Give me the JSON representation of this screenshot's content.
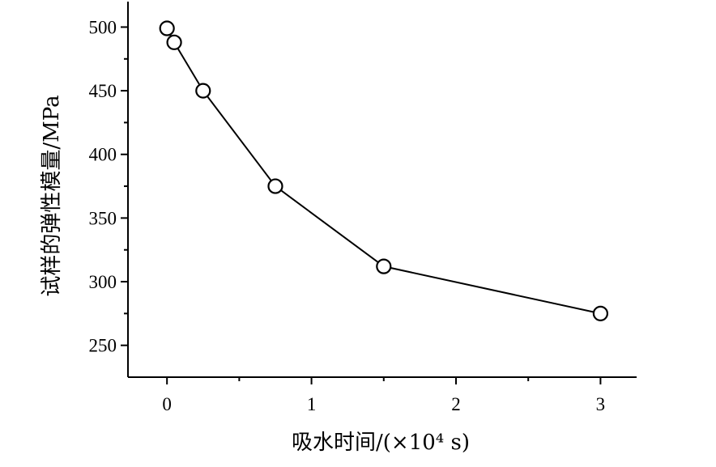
{
  "chart_data": {
    "type": "line",
    "title": "",
    "xlabel": "吸水时间/(×10⁴ s)",
    "ylabel": "试样的弹性模量/MPa",
    "xlim": [
      -0.27,
      3.25
    ],
    "ylim": [
      225,
      520
    ],
    "x_ticks": [
      0,
      1,
      2,
      3
    ],
    "x_tick_labels": [
      "0",
      "1",
      "2",
      "3"
    ],
    "x_minor_ticks": [
      0.5,
      1.5,
      2.5
    ],
    "y_ticks": [
      250,
      300,
      350,
      400,
      450,
      500
    ],
    "y_tick_labels": [
      "250",
      "300",
      "350",
      "400",
      "450",
      "500"
    ],
    "y_minor_ticks": [
      275,
      325,
      375,
      425,
      475
    ],
    "grid": false,
    "marker": "open-circle",
    "series": [
      {
        "x": [
          0,
          0.05,
          0.25,
          0.75,
          1.5,
          3
        ],
        "y": [
          499,
          488,
          450,
          375,
          312,
          275
        ]
      }
    ],
    "colors": {
      "line": "#000000",
      "marker_fill": "#ffffff"
    }
  }
}
